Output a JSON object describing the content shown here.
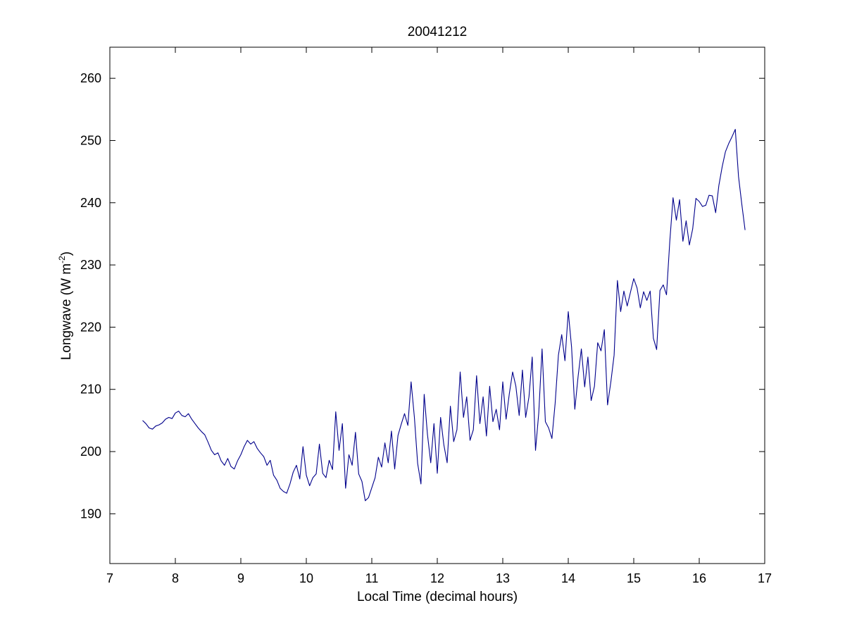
{
  "chart_data": {
    "type": "line",
    "title": "20041212",
    "xlabel": "Local Time (decimal hours)",
    "ylabel": {
      "prefix": "Longwave (W m",
      "superscript": "-2",
      "suffix": ")"
    },
    "xlim": [
      7,
      17
    ],
    "ylim": [
      182,
      265
    ],
    "xticks": [
      "7",
      "8",
      "9",
      "10",
      "11",
      "12",
      "13",
      "14",
      "15",
      "16",
      "17"
    ],
    "yticks": [
      "190",
      "200",
      "210",
      "220",
      "230",
      "240",
      "250",
      "260"
    ],
    "grid": false,
    "line_color": "#00008b",
    "series": [
      {
        "x": [
          7.5,
          7.55,
          7.6,
          7.65,
          7.7,
          7.75,
          7.8,
          7.85,
          7.9,
          7.95,
          8.0,
          8.05,
          8.1,
          8.15,
          8.2,
          8.25,
          8.3,
          8.35,
          8.4,
          8.45,
          8.5,
          8.55,
          8.6,
          8.65,
          8.7,
          8.75,
          8.8,
          8.85,
          8.9,
          8.95,
          9.0,
          9.05,
          9.1,
          9.15,
          9.2,
          9.25,
          9.3,
          9.35,
          9.4,
          9.45,
          9.5,
          9.55,
          9.6,
          9.65,
          9.7,
          9.75,
          9.8,
          9.85,
          9.9,
          9.95,
          10.0,
          10.05,
          10.1,
          10.15,
          10.2,
          10.25,
          10.3,
          10.35,
          10.4,
          10.45,
          10.5,
          10.55,
          10.6,
          10.65,
          10.7,
          10.75,
          10.8,
          10.85,
          10.9,
          10.95,
          11.0,
          11.05,
          11.1,
          11.15,
          11.2,
          11.25,
          11.3,
          11.35,
          11.4,
          11.45,
          11.5,
          11.55,
          11.6,
          11.65,
          11.7,
          11.75,
          11.8,
          11.85,
          11.9,
          11.95,
          12.0,
          12.05,
          12.1,
          12.15,
          12.2,
          12.25,
          12.3,
          12.35,
          12.4,
          12.45,
          12.5,
          12.55,
          12.6,
          12.65,
          12.7,
          12.75,
          12.8,
          12.85,
          12.9,
          12.95,
          13.0,
          13.05,
          13.1,
          13.15,
          13.2,
          13.25,
          13.3,
          13.35,
          13.4,
          13.45,
          13.5,
          13.55,
          13.6,
          13.65,
          13.7,
          13.75,
          13.8,
          13.85,
          13.9,
          13.95,
          14.0,
          14.05,
          14.1,
          14.15,
          14.2,
          14.25,
          14.3,
          14.35,
          14.4,
          14.45,
          14.5,
          14.55,
          14.6,
          14.65,
          14.7,
          14.75,
          14.8,
          14.85,
          14.9,
          14.95,
          15.0,
          15.05,
          15.1,
          15.15,
          15.2,
          15.25,
          15.3,
          15.35,
          15.4,
          15.45,
          15.5,
          15.55,
          15.6,
          15.65,
          15.7,
          15.75,
          15.8,
          15.85,
          15.9,
          15.95,
          16.0,
          16.05,
          16.1,
          16.15,
          16.2,
          16.25,
          16.3,
          16.35,
          16.4,
          16.45,
          16.5,
          16.55,
          16.6,
          16.65,
          16.7
        ],
        "y": [
          205,
          204.5,
          203.8,
          203.6,
          204.1,
          204.3,
          204.6,
          205.2,
          205.5,
          205.3,
          206.2,
          206.5,
          205.8,
          205.6,
          206.1,
          205.2,
          204.5,
          203.8,
          203.2,
          202.7,
          201.5,
          200.2,
          199.5,
          199.8,
          198.5,
          197.8,
          198.9,
          197.6,
          197.2,
          198.5,
          199.5,
          200.8,
          201.8,
          201.2,
          201.6,
          200.5,
          199.8,
          199.2,
          197.8,
          198.6,
          196.2,
          195.4,
          194.1,
          193.6,
          193.3,
          194.8,
          196.7,
          197.8,
          195.6,
          200.8,
          196.2,
          194.5,
          195.8,
          196.4,
          201.2,
          196.5,
          195.8,
          198.6,
          197.1,
          206.4,
          200.2,
          204.5,
          194.1,
          199.5,
          197.8,
          203.1,
          196.4,
          195.2,
          192.1,
          192.6,
          194.2,
          195.8,
          199.1,
          197.5,
          201.4,
          198.2,
          203.3,
          197.2,
          202.6,
          204.4,
          206.1,
          204.2,
          211.2,
          205.5,
          198.1,
          194.8,
          209.2,
          202.8,
          198.2,
          204.5,
          196.5,
          205.5,
          201.1,
          198.2,
          207.3,
          201.6,
          203.5,
          212.8,
          205.5,
          208.8,
          201.8,
          203.5,
          212.2,
          204.5,
          208.8,
          202.5,
          210.5,
          204.8,
          206.8,
          203.5,
          211.2,
          205.2,
          209.3,
          212.8,
          210.5,
          205.8,
          213.1,
          205.5,
          208.8,
          215.2,
          200.2,
          206.2,
          216.5,
          204.8,
          203.8,
          202.1,
          207.8,
          215.5,
          218.8,
          214.6,
          222.5,
          216.8,
          206.8,
          212.1,
          216.5,
          210.4,
          215.2,
          208.2,
          210.5,
          217.5,
          216.2,
          219.6,
          207.5,
          211.2,
          215.5,
          227.5,
          222.5,
          225.8,
          223.4,
          225.6,
          227.8,
          226.3,
          223.1,
          225.7,
          224.3,
          225.8,
          218.2,
          216.4,
          225.9,
          226.8,
          225.2,
          233.8,
          240.8,
          237.2,
          240.5,
          233.8,
          237.1,
          233.2,
          235.8,
          240.7,
          240.2,
          239.4,
          239.6,
          241.2,
          241.1,
          238.4,
          242.8,
          245.8,
          248.2,
          249.5,
          250.6,
          251.8,
          244.2,
          239.8,
          235.6
        ]
      }
    ]
  }
}
